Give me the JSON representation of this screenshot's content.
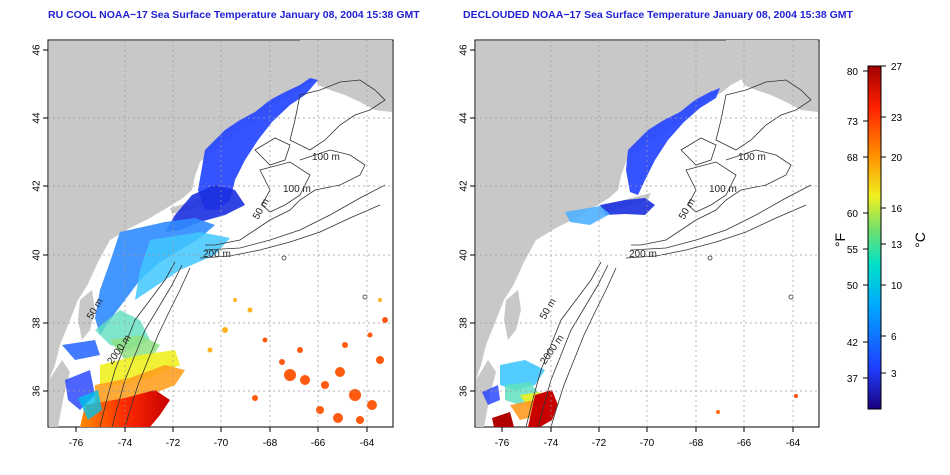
{
  "left_panel": {
    "title": "RU COOL NOAA−17 Sea Surface Temperature January 08, 2004 15:38 GMT",
    "x_ticks": [
      "-76",
      "-74",
      "-72",
      "-70",
      "-68",
      "-66",
      "-64"
    ],
    "y_ticks": [
      "46",
      "44",
      "42",
      "40",
      "38",
      "36"
    ],
    "contour_labels": [
      "100 m",
      "100 m",
      "50 m",
      "200 m",
      "50 m",
      "2000 m"
    ]
  },
  "right_panel": {
    "title": "DECLOUDED NOAA−17 Sea Surface Temperature January 08, 2004 15:38 GMT",
    "x_ticks": [
      "-76",
      "-74",
      "-72",
      "-70",
      "-68",
      "-66",
      "-64"
    ],
    "y_ticks": [
      "46",
      "44",
      "42",
      "40",
      "38",
      "36"
    ],
    "contour_labels": [
      "100 m",
      "100 m",
      "50 m",
      "200 m",
      "50 m",
      "2000 m"
    ]
  },
  "colorbar": {
    "fahrenheit_ticks": [
      "80",
      "73",
      "68",
      "60",
      "55",
      "50",
      "42",
      "37"
    ],
    "celsius_ticks": [
      "27",
      "23",
      "20",
      "16",
      "13",
      "10",
      "6",
      "3"
    ],
    "fahrenheit_label": "°F",
    "celsius_label": "°C",
    "colors": [
      "#1a0080",
      "#1f3fff",
      "#00b4ff",
      "#00e0c0",
      "#7fe070",
      "#f0f020",
      "#ff9000",
      "#ff2000",
      "#b00000"
    ]
  }
}
